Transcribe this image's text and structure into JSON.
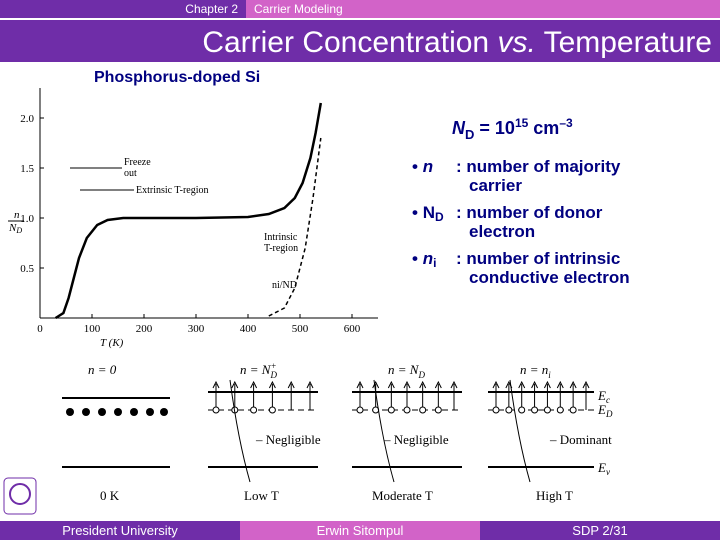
{
  "header": {
    "chapter": "Chapter 2",
    "section": "Carrier Modeling"
  },
  "title": {
    "before": "Carrier Concentration ",
    "italic": "vs.",
    "after": " Temperature"
  },
  "subtitle": "Phosphorus-doped Si",
  "chart_data": {
    "type": "line",
    "xlabel": "T (K)",
    "ylabel": {
      "num": "n",
      "den": "N",
      "den_sub": "D"
    },
    "annotations": [
      "Freeze",
      "out",
      "Extrinsic T-region",
      "Intrinsic",
      "T-region",
      "ni/ND"
    ],
    "xlim": [
      0,
      650
    ],
    "ylim": [
      0,
      2.2
    ],
    "xticks": [
      0,
      100,
      200,
      300,
      400,
      500,
      600
    ],
    "yticks": [
      0.5,
      {
        "value": 1,
        "label": "1.0"
      },
      1.5,
      {
        "value": 2,
        "label": "2.0"
      }
    ],
    "series": [
      {
        "color": "#000000",
        "x": [
          30,
          45,
          55,
          65,
          75,
          90,
          110,
          130,
          160,
          200,
          300,
          400,
          440,
          470,
          490,
          505,
          520,
          530,
          540
        ],
        "values": [
          0,
          0.05,
          0.2,
          0.4,
          0.6,
          0.8,
          0.93,
          0.98,
          1.0,
          1.0,
          1.0,
          1.01,
          1.04,
          1.1,
          1.2,
          1.35,
          1.6,
          1.85,
          2.15
        ]
      },
      {
        "color": "#000000",
        "x": [
          440,
          470,
          490,
          510,
          525,
          540
        ],
        "values": [
          0.02,
          0.1,
          0.3,
          0.7,
          1.2,
          1.8
        ]
      }
    ]
  },
  "nd": {
    "n": "N",
    "sub": "D",
    "eq": " = 10",
    "exp": "15",
    "unit": " cm",
    "unit_exp": "–3"
  },
  "bullets": [
    {
      "term": "n",
      "desc": ": number of majority",
      "desc2": "carrier"
    },
    {
      "term": "N",
      "sub": "D",
      "desc": ": number of donor",
      "desc2": "electron"
    },
    {
      "term": "n",
      "sub": "i",
      "desc": ": number of intrinsic",
      "desc2": "conductive electron"
    }
  ],
  "diagrams": [
    {
      "label": "n = 0",
      "temp": "0 K"
    },
    {
      "label": "n = N",
      "sub": "D",
      "sup": "+",
      "temp": "Low T",
      "note": "– Negligible"
    },
    {
      "label": "n = N",
      "sub": "D",
      "temp": "Moderate T",
      "note": "– Negligible"
    },
    {
      "label": "n = n",
      "sub": "i",
      "temp": "High T",
      "note": "– Dominant"
    }
  ],
  "levels": [
    {
      "name": "E",
      "sub": "c"
    },
    {
      "name": "E",
      "sub": "D"
    },
    {
      "name": "E",
      "sub": "v"
    }
  ],
  "footer": {
    "left": "President University",
    "center": "Erwin Sitompul",
    "right": "SDP 2/31"
  }
}
